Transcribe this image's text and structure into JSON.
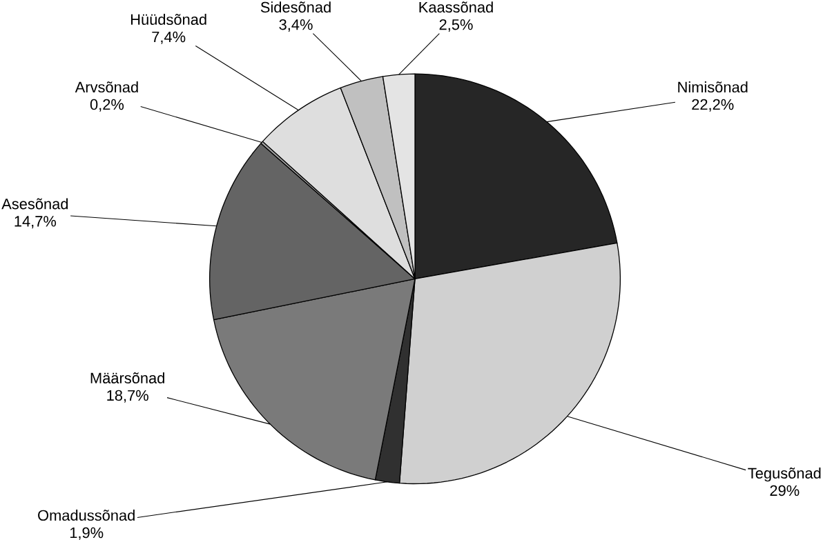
{
  "chart_data": {
    "type": "pie",
    "categories": [
      "Nimisõnad",
      "Tegusõnad",
      "Omadussõnad",
      "Määrsõnad",
      "Asesõnad",
      "Arvsõnad",
      "Hüüdsõnad",
      "Sidesõnad",
      "Kaassõnad"
    ],
    "values": [
      22.2,
      29,
      1.9,
      18.7,
      14.7,
      0.2,
      7.4,
      3.4,
      2.5
    ],
    "value_labels": [
      "22,2%",
      "29%",
      "1,9%",
      "18,7%",
      "14,7%",
      "0,2%",
      "7,4%",
      "3,4%",
      "2,5%"
    ],
    "colors": [
      "#262626",
      "#d0d0d0",
      "#303030",
      "#7a7a7a",
      "#646464",
      "#a0a0a0",
      "#dedede",
      "#c0c0c0",
      "#e4e4e4"
    ]
  }
}
